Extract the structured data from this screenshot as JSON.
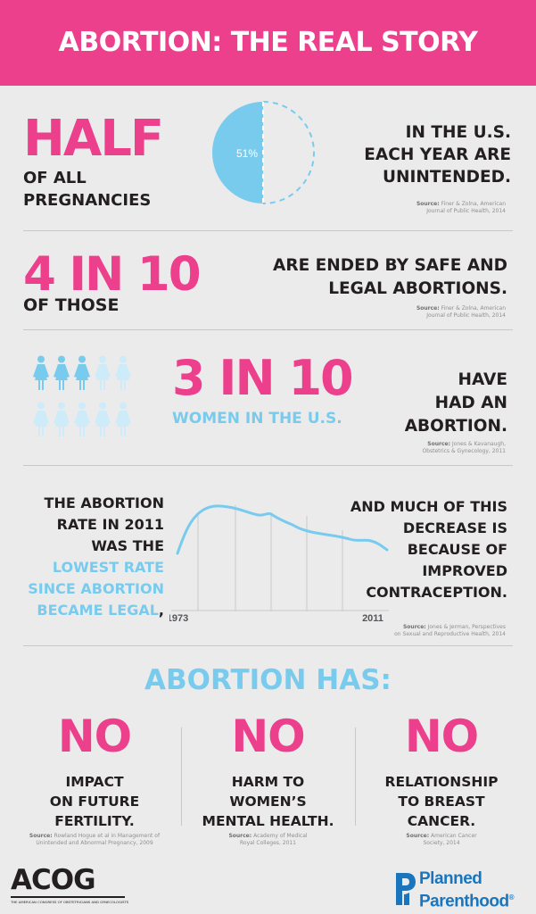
{
  "header": {
    "title": "ABORTION: THE REAL STORY"
  },
  "section1": {
    "stat": "HALF",
    "stat_sub_line1": "OF ALL",
    "stat_sub_line2": "PREGNANCIES",
    "pie_label": "51%",
    "pie_value": 0.51,
    "text_line1": "IN THE U.S.",
    "text_line2": "EACH YEAR ARE",
    "text_line3": "UNINTENDED.",
    "source_label": "Source:",
    "source_line1": "Finer & Zolna, American",
    "source_line2": "Journal of Public Health, 2014"
  },
  "section2": {
    "stat": "4 IN 10",
    "stat_sub": "OF THOSE",
    "text_line1": "ARE ENDED BY SAFE AND",
    "text_line2": "LEGAL ABORTIONS.",
    "source_label": "Source:",
    "source_line1": "Finer & Zolna, American",
    "source_line2": "Journal of Public Health, 2014"
  },
  "section3": {
    "stat": "3 IN 10",
    "stat_sub": "WOMEN IN THE U.S.",
    "text_line1": "HAVE",
    "text_line2": "HAD AN",
    "text_line3": "ABORTION.",
    "highlighted_count": 3,
    "total_count": 10,
    "source_label": "Source:",
    "source_line1": "Jones & Kavanaugh,",
    "source_line2": "Obstetrics & Gynecology, 2011",
    "icon_dark": "#79cbee",
    "icon_light": "#cdebf8"
  },
  "section4": {
    "left_line1": "THE ABORTION",
    "left_line2": "RATE IN 2011",
    "left_line3": "WAS THE",
    "left_blue1": "LOWEST RATE",
    "left_blue2": "SINCE ABORTION",
    "left_blue3": "BECAME LEGAL",
    "left_comma": ",",
    "right_line1": "AND MUCH OF THIS",
    "right_line2": "DECREASE IS",
    "right_line3": "BECAUSE OF",
    "right_line4": "IMPROVED",
    "right_line5": "CONTRACEPTION.",
    "x_start_label": "1973",
    "x_end_label": "2011",
    "source_label": "Source:",
    "source_line1": "Jones & Jerman, Perspectives",
    "source_line2": "on Sexual and Reproductive Health, 2014"
  },
  "section5": {
    "title": "ABORTION HAS:",
    "items": [
      {
        "no": "NO",
        "line1": "IMPACT",
        "line2": "ON FUTURE",
        "line3": "FERTILITY.",
        "source_label": "Source:",
        "source_line1": "Rowland Hogue et al in Management of",
        "source_line2": "Unintended and Abnormal Pregnancy, 2009"
      },
      {
        "no": "NO",
        "line1": "HARM TO",
        "line2": "WOMEN’S",
        "line3": "MENTAL HEALTH.",
        "source_label": "Source:",
        "source_line1": "Academy of Medical",
        "source_line2": "Royal Colleges, 2011"
      },
      {
        "no": "NO",
        "line1": "RELATIONSHIP",
        "line2": "TO BREAST",
        "line3": "CANCER.",
        "source_label": "Source:",
        "source_line1": "American Cancer",
        "source_line2": "Society, 2014"
      }
    ]
  },
  "footer": {
    "acog_logo": "ACOG",
    "acog_sub": "THE AMERICAN CONGRESS OF OBSTETRICIANS AND GYNECOLOGISTS",
    "pp_line1": "Planned",
    "pp_line2": "Parenthood",
    "pp_reg": "®",
    "pp_color": "#1a75bc"
  }
}
